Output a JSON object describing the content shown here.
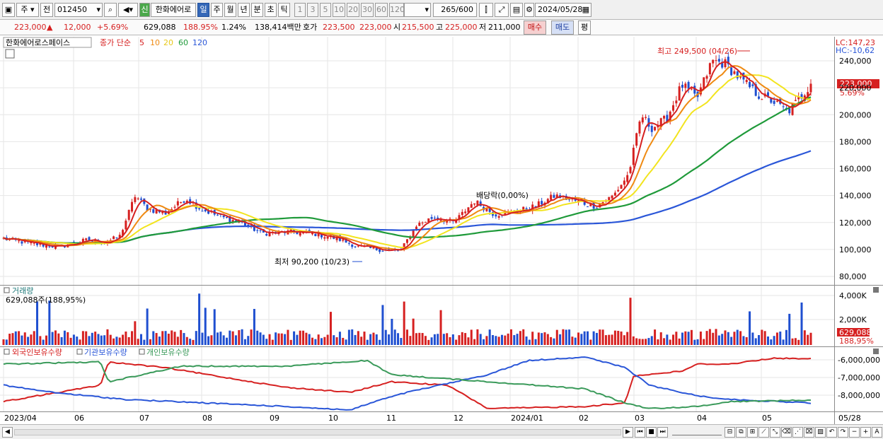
{
  "toolbar": {
    "market": "주",
    "scope": "전",
    "code": "012450",
    "name_badge": "신",
    "name": "한화에어로",
    "periods": [
      "일",
      "주",
      "월",
      "년",
      "분",
      "초",
      "틱"
    ],
    "active_period": "일",
    "intervals": [
      "1",
      "3",
      "5",
      "10",
      "20",
      "30",
      "60",
      "120"
    ],
    "count": "265",
    "count_max": "/600",
    "date": "2024/05/28"
  },
  "info": {
    "price": "223,000",
    "arrow": "▲",
    "change": "12,000",
    "change_pct": "+5.69%",
    "volume": "629,088",
    "volume_ratio": "188.95%",
    "turnover": "1.24%",
    "amount": "138,414백만",
    "ask_label": "호가",
    "ask": "223,500",
    "bid": "223,000",
    "open_label": "시",
    "open": "215,500",
    "high_label": "고",
    "high": "225,000",
    "low_label": "저",
    "low": "211,000",
    "buy": "매수",
    "sell": "매도",
    "eval": "평"
  },
  "price_panel": {
    "stock": "한화에어로스페이스",
    "legend_prefix": "종가 단순",
    "ma_labels": [
      "5",
      "10",
      "20",
      "60",
      "120"
    ],
    "lc": "LC:147,23",
    "hc": "HC:-10,62",
    "high_note": "최고 249,500 (04/26)",
    "low_note": "최저 90,200 (10/23)",
    "dividend_note": "배당락(0,00%)",
    "current_price": "223,000",
    "current_pct": "5.69%",
    "y_ticks": [
      "240,000",
      "220,000",
      "200,000",
      "180,000",
      "160,000",
      "140,000",
      "120,000",
      "100,000",
      "80,000"
    ]
  },
  "volume_panel": {
    "title": "거래량",
    "value": "629,088주(188,95%)",
    "y_ticks": [
      "4,000K",
      "2,000K"
    ],
    "current": "629,088",
    "current_pct": "188,95%"
  },
  "holding_panel": {
    "legend": [
      "외국인보유수량",
      "기관보유수량",
      "개인보유수량"
    ],
    "y_ticks": [
      "-6,000,000",
      "-7,000,000",
      "-8,000,000"
    ]
  },
  "x_axis": [
    "2023/04",
    "06",
    "07",
    "08",
    "09",
    "10",
    "11",
    "12",
    "2024/01",
    "02",
    "03",
    "04",
    "05",
    "05/28"
  ],
  "colors": {
    "up": "#d62020",
    "down": "#1f4fd0",
    "ma5": "#d62020",
    "ma10": "#ef8a12",
    "ma20": "#f2e41e",
    "ma60": "#1f9a3a",
    "ma120": "#2a56d8",
    "foreign": "#d62020",
    "institution": "#2a56d8",
    "individual": "#3a9a5a"
  }
}
